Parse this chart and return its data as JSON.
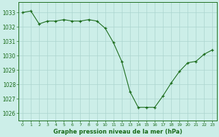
{
  "x": [
    0,
    1,
    2,
    3,
    4,
    5,
    6,
    7,
    8,
    9,
    10,
    11,
    12,
    13,
    14,
    15,
    16,
    17,
    18,
    19,
    20,
    21,
    22,
    23
  ],
  "y": [
    1033.0,
    1033.1,
    1032.2,
    1032.4,
    1032.4,
    1032.5,
    1032.4,
    1032.4,
    1032.5,
    1032.4,
    1031.9,
    1030.9,
    1029.6,
    1027.5,
    1026.4,
    1026.4,
    1026.4,
    1027.2,
    1028.1,
    1028.9,
    1029.5,
    1029.6,
    1030.1,
    1030.4
  ],
  "line_color": "#1a6b1a",
  "marker_color": "#1a6b1a",
  "bg_color": "#cceee8",
  "grid_color": "#aad4ce",
  "axis_color": "#1a6b1a",
  "tick_color": "#1a6b1a",
  "label_color": "#1a6b1a",
  "xlabel": "Graphe pression niveau de la mer (hPa)",
  "ylim": [
    1025.5,
    1033.7
  ],
  "yticks": [
    1026,
    1027,
    1028,
    1029,
    1030,
    1031,
    1032,
    1033
  ],
  "xticks": [
    0,
    1,
    2,
    3,
    4,
    5,
    6,
    7,
    8,
    9,
    10,
    11,
    12,
    13,
    14,
    15,
    16,
    17,
    18,
    19,
    20,
    21,
    22,
    23
  ],
  "xtick_labels": [
    "0",
    "1",
    "2",
    "3",
    "4",
    "5",
    "6",
    "7",
    "8",
    "9",
    "10",
    "11",
    "12",
    "13",
    "14",
    "15",
    "16",
    "17",
    "18",
    "19",
    "20",
    "21",
    "22",
    "23"
  ]
}
